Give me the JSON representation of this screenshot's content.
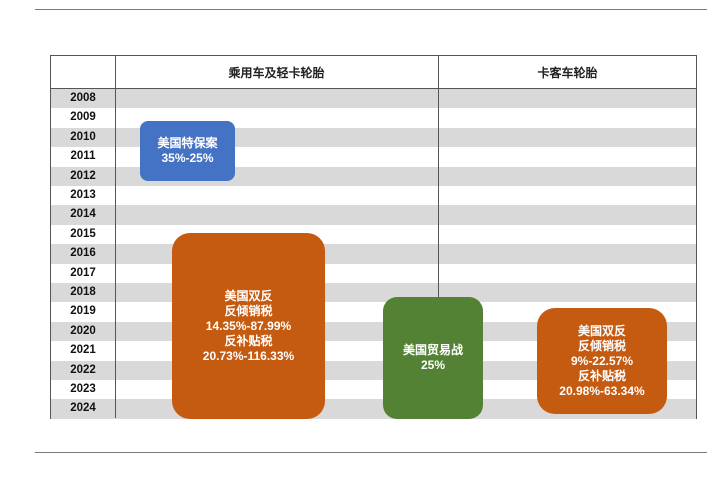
{
  "header": {
    "col1": "乘用车及轻卡轮胎",
    "col2": "卡客车轮胎"
  },
  "years": [
    "2008",
    "2009",
    "2010",
    "2011",
    "2012",
    "2013",
    "2014",
    "2015",
    "2016",
    "2017",
    "2018",
    "2019",
    "2020",
    "2021",
    "2022",
    "2023",
    "2024"
  ],
  "boxes": {
    "special_safeguard": {
      "title": "美国特保案",
      "value": "35%-25%"
    },
    "ad_cvd_passenger": {
      "title": "美国双反",
      "ad_label": "反倾销税",
      "ad_value": "14.35%-87.99%",
      "cvd_label": "反补贴税",
      "cvd_value": "20.73%-116.33%"
    },
    "trade_war": {
      "title": "美国贸易战",
      "value": "25%"
    },
    "ad_cvd_truck": {
      "title": "美国双反",
      "ad_label": "反倾销税",
      "ad_value": "9%-22.57%",
      "cvd_label": "反补贴税",
      "cvd_value": "20.98%-63.34%"
    }
  },
  "colors": {
    "blue": "#4472c4",
    "orange": "#c55a11",
    "green": "#548235",
    "row_shade": "#d9d9d9"
  }
}
